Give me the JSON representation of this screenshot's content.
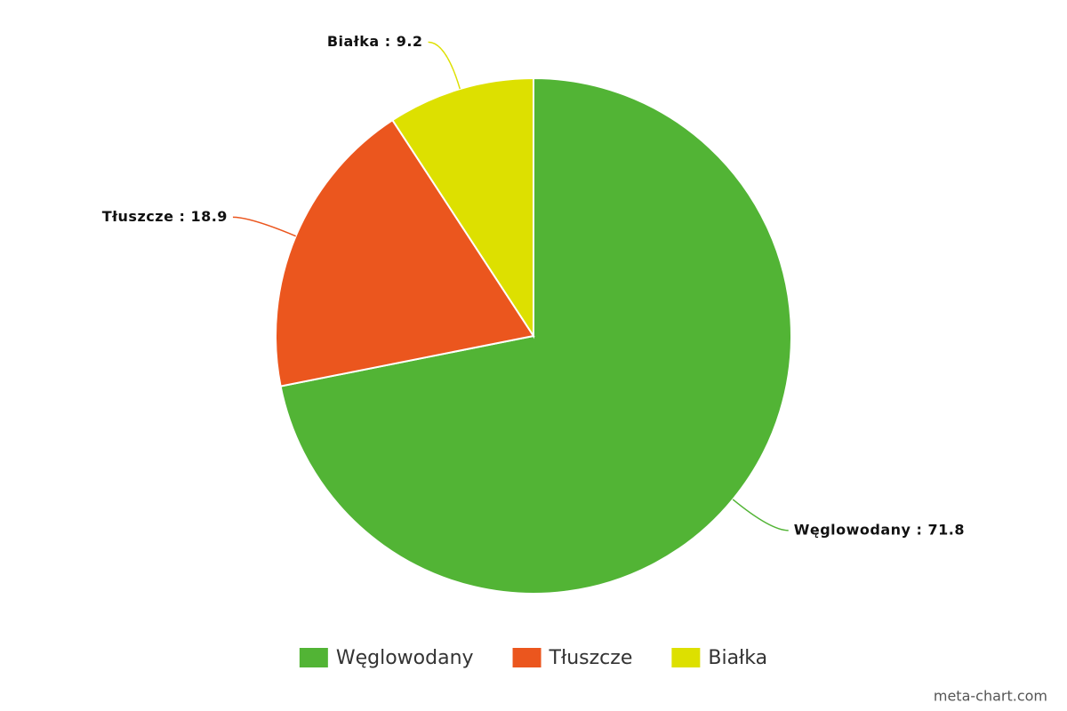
{
  "chart_data": {
    "type": "pie",
    "categories": [
      "Węglowodany",
      "Tłuszcze",
      "Białka"
    ],
    "values": [
      71.8,
      18.9,
      9.2
    ],
    "value_labels": [
      "Węglowodany : 71.8",
      "Tłuszcze : 18.9",
      "Białka : 9.2"
    ],
    "colors": [
      "#52b435",
      "#eb561e",
      "#dde000"
    ],
    "legend": "bottom",
    "credit": "meta-chart.com"
  }
}
